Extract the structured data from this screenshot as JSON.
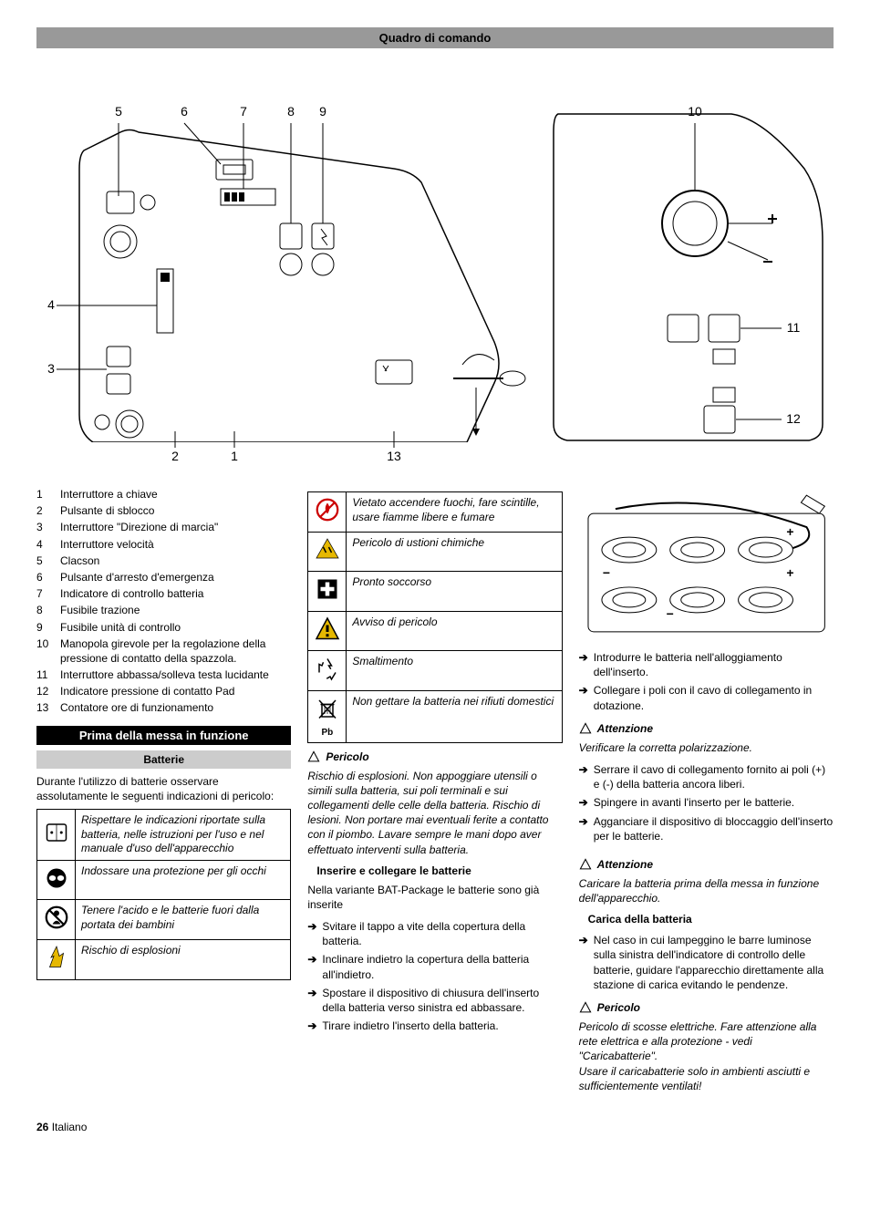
{
  "header": {
    "title": "Quadro di comando"
  },
  "diagram": {
    "callouts_top": [
      "5",
      "6",
      "7",
      "8",
      "9",
      "10"
    ],
    "callouts_left": [
      "4",
      "3"
    ],
    "callouts_right": [
      "11",
      "12"
    ],
    "callouts_bottom": [
      "2",
      "1",
      "13"
    ]
  },
  "legend": [
    {
      "n": "1",
      "t": "Interruttore a chiave"
    },
    {
      "n": "2",
      "t": "Pulsante di sblocco"
    },
    {
      "n": "3",
      "t": "Interruttore \"Direzione di marcia\""
    },
    {
      "n": "4",
      "t": "Interruttore velocità"
    },
    {
      "n": "5",
      "t": "Clacson"
    },
    {
      "n": "6",
      "t": "Pulsante d'arresto d'emergenza"
    },
    {
      "n": "7",
      "t": "Indicatore di controllo batteria"
    },
    {
      "n": "8",
      "t": "Fusibile trazione"
    },
    {
      "n": "9",
      "t": "Fusibile unità di controllo"
    },
    {
      "n": "10",
      "t": "Manopola girevole per la regolazione della pressione di contatto della spazzola."
    },
    {
      "n": "11",
      "t": "Interruttore abbassa/solleva testa lucidante"
    },
    {
      "n": "12",
      "t": "Indicatore pressione di contatto Pad"
    },
    {
      "n": "13",
      "t": "Contatore ore di funzionamento"
    }
  ],
  "section_startup": "Prima della messa in funzione",
  "sub_batteries": "Batterie",
  "intro_batteries": "Durante l'utilizzo di batterie osservare assolutamente le seguenti indicazioni di pericolo:",
  "table1": [
    {
      "icon": "manual",
      "text": "Rispettare le indicazioni riportate sulla batteria, nelle istruzioni per l'uso e nel manuale d'uso dell'apparecchio"
    },
    {
      "icon": "goggles",
      "text": "Indossare una protezione per gli occhi"
    },
    {
      "icon": "nokids",
      "text": "Tenere l'acido e le batterie fuori dalla portata dei bambini"
    },
    {
      "icon": "explosion",
      "text": "Rischio di esplosioni"
    }
  ],
  "table2": [
    {
      "icon": "noflame",
      "text": "Vietato accendere fuochi, fare scintille, usare fiamme libere e fumare"
    },
    {
      "icon": "corrosive",
      "text": "Pericolo di ustioni chimiche"
    },
    {
      "icon": "firstaid",
      "text": "Pronto soccorso"
    },
    {
      "icon": "warning",
      "text": "Avviso di pericolo"
    },
    {
      "icon": "recycle",
      "text": "Smaltimento"
    },
    {
      "icon": "bin",
      "text": "Non gettare la batteria nei rifiuti domestici",
      "caption": "Pb"
    }
  ],
  "danger1": {
    "label": "Pericolo",
    "body": "Rischio di esplosioni. Non appoggiare utensili o simili sulla batteria, sui poli terminali e sui collegamenti delle celle della batteria. Rischio di lesioni. Non portare mai eventuali ferite a contatto con il piombo. Lavare sempre le mani dopo aver effettuato interventi sulla batteria."
  },
  "sub_insert": "Inserire e collegare le batterie",
  "insert_intro": "Nella variante BAT-Package le batterie sono già inserite",
  "insert_steps": [
    "Svitare il tappo a vite della copertura della batteria.",
    "Inclinare indietro la copertura della batteria all'indietro.",
    "Spostare il dispositivo di chiusura dell'inserto della batteria verso sinistra ed abbassare.",
    "Tirare indietro l'inserto della batteria."
  ],
  "battery_steps": [
    "Introdurre le batteria nell'alloggiamento dell'inserto.",
    "Collegare i poli con il cavo di collegamento in dotazione."
  ],
  "attention1": {
    "label": "Attenzione",
    "body": "Verificare la corretta polarizzazione."
  },
  "polarity_steps": [
    "Serrare il cavo di collegamento fornito ai poli (+) e (-) della batteria ancora liberi.",
    "Spingere in avanti l'inserto per le batterie.",
    "Agganciare il dispositivo di bloccaggio dell'inserto per le batterie."
  ],
  "attention2": {
    "label": "Attenzione",
    "body": "Caricare la batteria prima della messa in funzione dell'apparecchio."
  },
  "sub_charge": "Carica della batteria",
  "charge_steps": [
    "Nel caso in cui lampeggino le barre luminose sulla sinistra dell'indicatore di controllo delle batterie, guidare l'apparecchio direttamente alla stazione di carica evitando le pendenze."
  ],
  "danger2": {
    "label": "Pericolo",
    "body": "Pericolo di scosse elettriche. Fare attenzione alla rete elettrica e alla protezione - vedi \"Caricabatterie\".\nUsare il caricabatterie solo in ambienti asciutti e sufficientemente ventilati!"
  },
  "footer": {
    "page": "26",
    "lang": "Italiano"
  }
}
